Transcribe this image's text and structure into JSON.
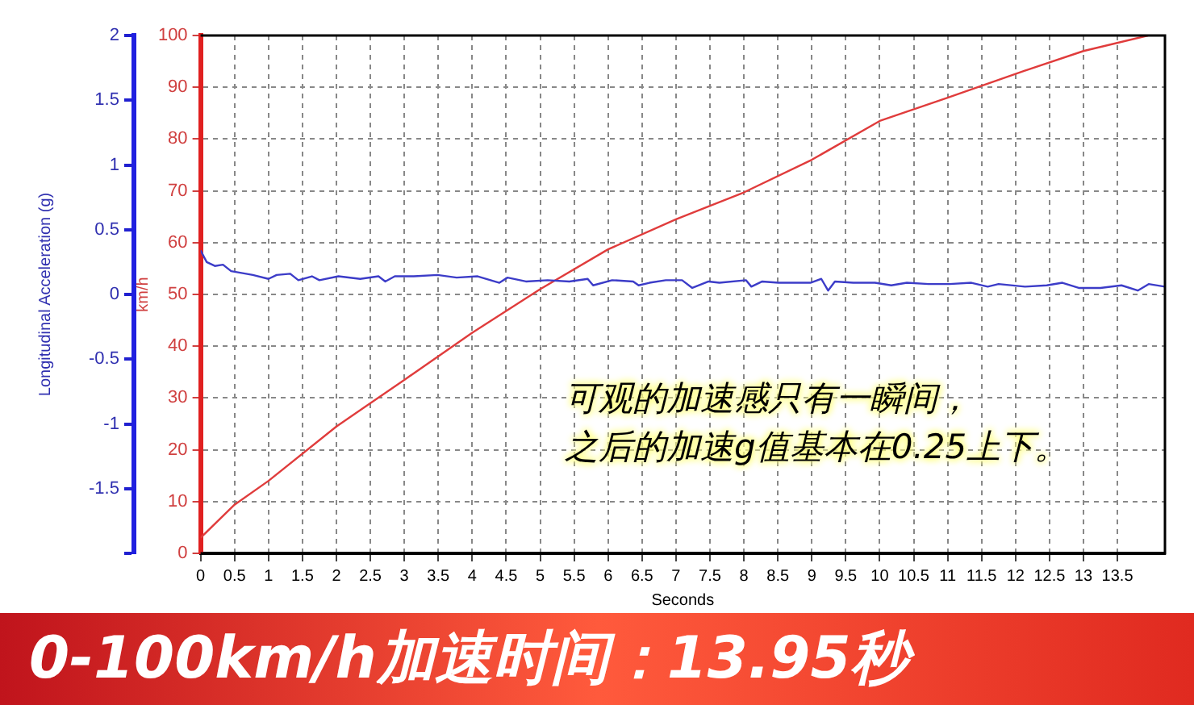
{
  "chart_data": {
    "type": "line",
    "xlabel": "Seconds",
    "ylabel": "Longitudinal Acceleration (g)",
    "y2label": "km/h",
    "xlim": [
      0,
      14.2
    ],
    "xticks": [
      0,
      0.5,
      1,
      1.5,
      2,
      2.5,
      3,
      3.5,
      4,
      4.5,
      5,
      5.5,
      6,
      6.5,
      7,
      7.5,
      8,
      8.5,
      9,
      9.5,
      10,
      10.5,
      11,
      11.5,
      12,
      12.5,
      13,
      13.5
    ],
    "ylim": [
      -2,
      2
    ],
    "yticks": [
      -1.5,
      -1,
      -0.5,
      0,
      0.5,
      1,
      1.5,
      2,
      {
        "value": -2,
        "label": null
      }
    ],
    "y2lim": [
      0,
      100
    ],
    "y2ticks": [
      0,
      10,
      20,
      30,
      40,
      50,
      60,
      70,
      80,
      90,
      100
    ],
    "grid": true,
    "legend": false,
    "marker": "none",
    "line_style": "solid",
    "series": [
      {
        "color": "#3c3cc8",
        "x": [
          0,
          0.09,
          0.21,
          0.33,
          0.45,
          0.77,
          1.0,
          1.12,
          1.32,
          1.44,
          1.64,
          1.75,
          2.03,
          2.35,
          2.62,
          2.72,
          2.86,
          3.14,
          3.49,
          3.77,
          4.08,
          4.4,
          4.52,
          4.79,
          5.11,
          5.43,
          5.7,
          5.78,
          6.06,
          6.37,
          6.45,
          6.61,
          6.85,
          7.09,
          7.24,
          7.48,
          7.64,
          8.03,
          8.11,
          8.27,
          8.51,
          8.98,
          9.14,
          9.24,
          9.34,
          9.61,
          9.93,
          10.17,
          10.4,
          10.72,
          11.03,
          11.35,
          11.59,
          11.75,
          12.14,
          12.46,
          12.69,
          12.93,
          13.25,
          13.56,
          13.8,
          13.96,
          14.2
        ],
        "values": [
          0.34,
          0.25,
          0.22,
          0.23,
          0.18,
          0.15,
          0.12,
          0.15,
          0.16,
          0.11,
          0.14,
          0.11,
          0.14,
          0.12,
          0.14,
          0.1,
          0.14,
          0.14,
          0.15,
          0.13,
          0.14,
          0.09,
          0.13,
          0.1,
          0.11,
          0.1,
          0.12,
          0.07,
          0.11,
          0.1,
          0.07,
          0.09,
          0.11,
          0.11,
          0.05,
          0.1,
          0.09,
          0.11,
          0.06,
          0.1,
          0.09,
          0.09,
          0.12,
          0.03,
          0.1,
          0.09,
          0.09,
          0.07,
          0.09,
          0.08,
          0.08,
          0.09,
          0.06,
          0.08,
          0.06,
          0.07,
          0.09,
          0.05,
          0.05,
          0.07,
          0.03,
          0.08,
          0.06
        ]
      },
      {
        "color": "#e03c3c",
        "axis": "y2",
        "x": [
          0,
          0.5,
          1,
          2,
          3,
          4,
          5,
          6,
          7,
          8,
          9,
          10,
          11,
          12,
          13,
          13.95
        ],
        "values": [
          3,
          9.4,
          14,
          24.5,
          33.5,
          42.6,
          51,
          58.7,
          64.5,
          69.7,
          76,
          83.5,
          88,
          92.6,
          97,
          100
        ]
      }
    ],
    "annotations": [
      "可观的加速感只有一瞬间，",
      "之后的加速g值基本在0.25上下。",
      "0-100km/h加速时间：13.95秒"
    ]
  }
}
